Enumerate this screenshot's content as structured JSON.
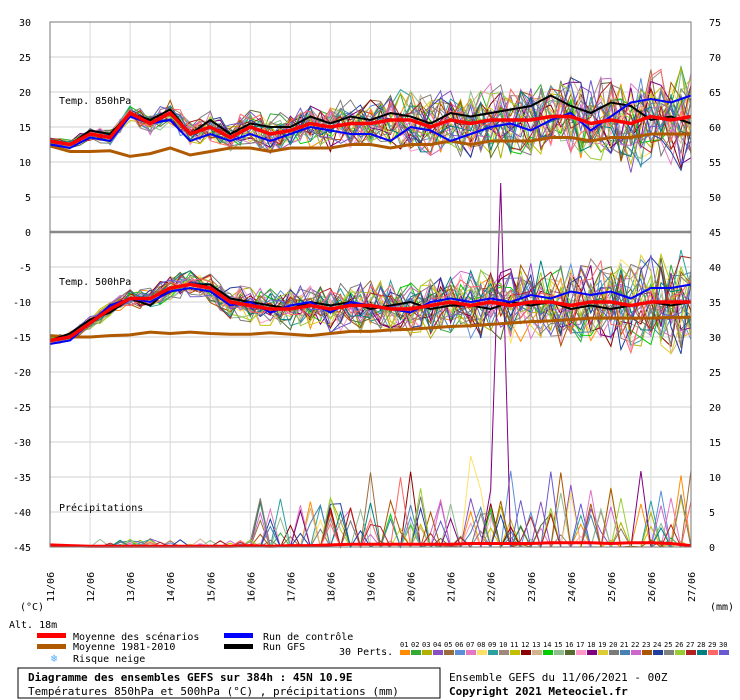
{
  "chart_data": {
    "type": "line",
    "left_axis": {
      "unit_label": "(°C)",
      "ticks": [
        "30",
        "25",
        "20",
        "15",
        "10",
        "5",
        "0",
        "-5",
        "-10",
        "-15",
        "-20",
        "-25",
        "-30",
        "-35",
        "-40",
        "-45"
      ],
      "ylim": [
        -45,
        30
      ]
    },
    "right_axis": {
      "unit_label": "(mm)",
      "ticks": [
        "75",
        "70",
        "65",
        "60",
        "55",
        "50",
        "45",
        "40",
        "35",
        "30",
        "25",
        "20",
        "15",
        "10",
        "5",
        "0"
      ],
      "ylim": [
        0,
        75
      ]
    },
    "x_ticks": [
      "11/06",
      "12/06",
      "13/06",
      "14/06",
      "15/06",
      "16/06",
      "17/06",
      "18/06",
      "19/06",
      "20/06",
      "21/06",
      "22/06",
      "23/06",
      "24/06",
      "25/06",
      "26/06",
      "27/06"
    ],
    "panels": [
      {
        "label": "Temp. 850hPa",
        "unit": "°C"
      },
      {
        "label": "Temp. 500hPa",
        "unit": "°C"
      },
      {
        "label": "Précipitations",
        "unit": "mm"
      }
    ],
    "temp850": {
      "mean": [
        13.0,
        12.5,
        14.0,
        13.5,
        17.0,
        15.5,
        17.0,
        14.0,
        15.0,
        13.5,
        15.0,
        14.0,
        14.5,
        15.5,
        15.0,
        15.5,
        15.5,
        16.0,
        16.0,
        15.0,
        16.0,
        15.5,
        16.0,
        16.0,
        16.0,
        16.5,
        16.5,
        15.5,
        16.0,
        15.5,
        16.5,
        16.0,
        16.5
      ],
      "control": [
        12.5,
        12.0,
        13.5,
        13.0,
        16.5,
        15.5,
        16.0,
        13.0,
        14.0,
        13.0,
        14.0,
        13.0,
        14.0,
        15.0,
        14.5,
        14.0,
        14.0,
        13.0,
        15.0,
        14.5,
        13.0,
        14.0,
        15.0,
        15.5,
        14.5,
        16.0,
        17.0,
        14.5,
        16.5,
        18.5,
        19.0,
        18.5,
        19.5
      ],
      "gfs": [
        13.0,
        12.5,
        14.5,
        14.0,
        17.0,
        16.0,
        17.5,
        14.0,
        16.0,
        14.0,
        15.5,
        15.0,
        15.0,
        16.5,
        15.5,
        16.5,
        16.0,
        17.0,
        16.5,
        15.5,
        17.0,
        16.5,
        17.0,
        17.5,
        18.0,
        19.5,
        18.0,
        17.0,
        18.5,
        18.0,
        16.0,
        16.5,
        15.5
      ],
      "clim_1981_2010": [
        12.3,
        11.5,
        11.5,
        11.6,
        10.8,
        11.2,
        12.0,
        11.0,
        11.5,
        12.0,
        12.0,
        11.5,
        12.0,
        12.0,
        12.0,
        12.5,
        12.5,
        12.0,
        12.5,
        12.5,
        13.0,
        12.5,
        13.0,
        13.0,
        13.0,
        13.5,
        13.5,
        13.0,
        13.5,
        13.5,
        14.0,
        14.0,
        14.0
      ]
    },
    "temp500": {
      "mean": [
        -15.5,
        -15.0,
        -13.0,
        -11.0,
        -9.5,
        -9.5,
        -8.0,
        -7.5,
        -8.0,
        -10.0,
        -10.5,
        -11.0,
        -11.0,
        -10.5,
        -11.0,
        -10.5,
        -10.5,
        -11.0,
        -11.0,
        -10.5,
        -10.0,
        -10.5,
        -10.0,
        -10.5,
        -10.0,
        -10.0,
        -10.5,
        -10.0,
        -10.0,
        -10.5,
        -10.0,
        -10.0,
        -10.0
      ],
      "control": [
        -16.0,
        -15.5,
        -13.0,
        -10.5,
        -9.5,
        -10.0,
        -8.5,
        -8.0,
        -8.5,
        -10.5,
        -10.0,
        -11.5,
        -10.5,
        -10.0,
        -11.5,
        -10.0,
        -10.5,
        -11.0,
        -11.5,
        -10.0,
        -9.5,
        -10.0,
        -9.5,
        -10.0,
        -9.0,
        -9.5,
        -8.5,
        -9.0,
        -8.5,
        -9.5,
        -8.0,
        -8.0,
        -7.5
      ],
      "gfs": [
        -15.5,
        -14.5,
        -12.5,
        -11.5,
        -9.5,
        -10.5,
        -8.0,
        -7.5,
        -7.5,
        -9.5,
        -10.0,
        -10.5,
        -11.0,
        -10.0,
        -10.5,
        -10.0,
        -11.0,
        -10.5,
        -10.0,
        -11.0,
        -10.5,
        -10.5,
        -11.0,
        -10.0,
        -10.5,
        -10.0,
        -11.0,
        -10.5,
        -11.0,
        -10.5,
        -10.0,
        -10.5,
        -10.0
      ],
      "clim_1981_2010": [
        -14.8,
        -15.0,
        -15.0,
        -14.8,
        -14.7,
        -14.3,
        -14.5,
        -14.3,
        -14.5,
        -14.6,
        -14.6,
        -14.4,
        -14.6,
        -14.8,
        -14.5,
        -14.2,
        -14.2,
        -14.0,
        -13.9,
        -13.7,
        -13.5,
        -13.4,
        -13.2,
        -13.0,
        -12.8,
        -12.7,
        -12.5,
        -12.3,
        -12.3,
        -12.3,
        -12.3,
        -12.2,
        -12.2
      ]
    },
    "precip_mean_mm": [
      0.3,
      0.2,
      0.1,
      0.1,
      0.1,
      0.1,
      0.1,
      0.1,
      0.1,
      0.1,
      0.2,
      0.1,
      0.2,
      0.2,
      0.3,
      0.4,
      0.4,
      0.4,
      0.4,
      0.4,
      0.4,
      0.5,
      0.5,
      0.5,
      0.5,
      0.6,
      0.6,
      0.6,
      0.5,
      0.6,
      0.6,
      0.5,
      0.2
    ],
    "ensemble_members": [
      "01",
      "02",
      "03",
      "04",
      "05",
      "06",
      "07",
      "08",
      "09",
      "10",
      "11",
      "12",
      "13",
      "14",
      "15",
      "16",
      "17",
      "18",
      "19",
      "20",
      "21",
      "22",
      "23",
      "24",
      "25",
      "26",
      "27",
      "28",
      "29",
      "30"
    ],
    "member_colors": [
      "#ff8c00",
      "#33aa33",
      "#b0b000",
      "#8a4fc0",
      "#9c6b3a",
      "#5b8fd9",
      "#e377c2",
      "#ffe066",
      "#2ca0a0",
      "#a1887f",
      "#c0c000",
      "#8b0000",
      "#d2b48c",
      "#00cc00",
      "#8fbc8f",
      "#556b2f",
      "#ff99cc",
      "#800080",
      "#ddcc33",
      "#7a7a7a",
      "#4682b4",
      "#cc66cc",
      "#aa5500",
      "#1f3f9f",
      "#808080",
      "#9acd32",
      "#b22222",
      "#008080",
      "#ff6666",
      "#6a5acd"
    ]
  },
  "legend": {
    "mean_scenarios": "Moyenne des scénarios",
    "mean_1981_2010": "Moyenne 1981-2010",
    "snow_risk": "Risque neige",
    "control_run": "Run de contrôle",
    "gfs_run": "Run GFS",
    "perts_label": "30 Perts.",
    "alt_label": "Alt. 18m",
    "colors": {
      "mean": "#ff0000",
      "clim": "#b05a00",
      "control": "#0000ff",
      "gfs": "#000000",
      "snow": "#55aaff"
    }
  },
  "footer": {
    "line1": "Diagramme des ensembles GEFS sur 384h : 45N 10.9E",
    "line2": "Températures 850hPa et 500hPa (°C) , précipitations (mm)",
    "ens_run": "Ensemble GEFS du 11/06/2021 - 00Z",
    "copyright": "Copyright 2021 Meteociel.fr"
  }
}
